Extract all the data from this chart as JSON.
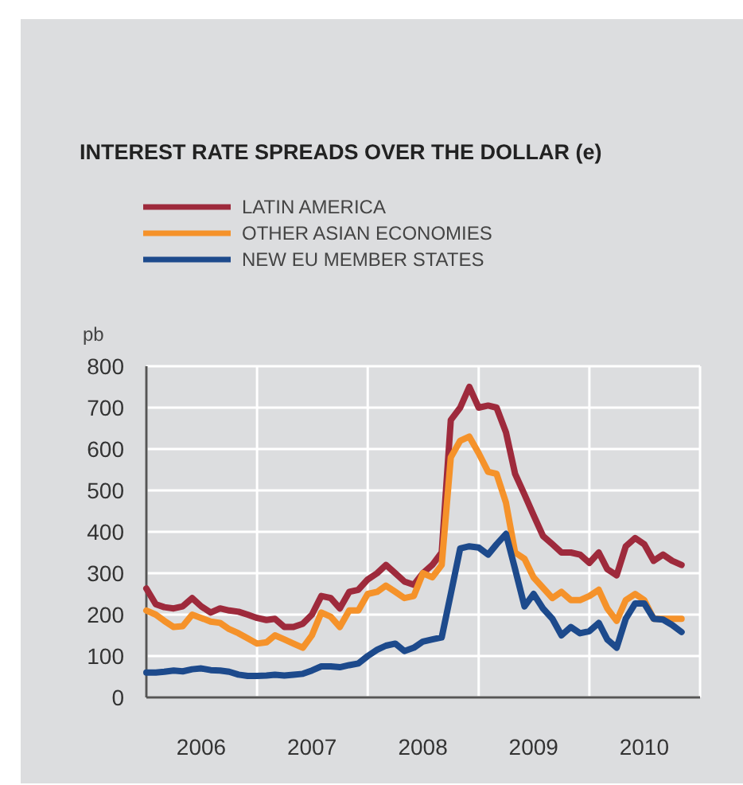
{
  "chart_data": {
    "type": "line",
    "title": "INTEREST RATE SPREADS OVER THE DOLLAR (e)",
    "ylabel": "pb",
    "x": [
      "2006-01",
      "2006-02",
      "2006-03",
      "2006-04",
      "2006-05",
      "2006-06",
      "2006-07",
      "2006-08",
      "2006-09",
      "2006-10",
      "2006-11",
      "2006-12",
      "2007-01",
      "2007-02",
      "2007-03",
      "2007-04",
      "2007-05",
      "2007-06",
      "2007-07",
      "2007-08",
      "2007-09",
      "2007-10",
      "2007-11",
      "2007-12",
      "2008-01",
      "2008-02",
      "2008-03",
      "2008-04",
      "2008-05",
      "2008-06",
      "2008-07",
      "2008-08",
      "2008-09",
      "2008-10",
      "2008-11",
      "2008-12",
      "2009-01",
      "2009-02",
      "2009-03",
      "2009-04",
      "2009-05",
      "2009-06",
      "2009-07",
      "2009-08",
      "2009-09",
      "2009-10",
      "2009-11",
      "2009-12",
      "2010-01",
      "2010-02",
      "2010-03",
      "2010-04",
      "2010-05",
      "2010-06",
      "2010-07",
      "2010-08",
      "2010-09",
      "2010-10",
      "2010-11"
    ],
    "series": [
      {
        "name": "LATIN AMERICA",
        "color": "#9e2a3c",
        "values": [
          263,
          225,
          218,
          215,
          220,
          240,
          220,
          205,
          215,
          210,
          207,
          200,
          192,
          187,
          190,
          170,
          170,
          178,
          200,
          245,
          240,
          215,
          255,
          260,
          285,
          300,
          320,
          300,
          280,
          272,
          300,
          320,
          350,
          670,
          700,
          750,
          700,
          705,
          700,
          640,
          540,
          490,
          440,
          390,
          370,
          350,
          350,
          345,
          325,
          350,
          310,
          295,
          365,
          385,
          370,
          330,
          345,
          330,
          320
        ]
      },
      {
        "name": "OTHER ASIAN ECONOMIES",
        "color": "#f5922a",
        "values": [
          210,
          200,
          185,
          170,
          172,
          200,
          192,
          183,
          180,
          165,
          155,
          143,
          130,
          133,
          150,
          140,
          130,
          120,
          150,
          205,
          195,
          170,
          210,
          210,
          250,
          255,
          270,
          255,
          240,
          245,
          300,
          290,
          320,
          580,
          620,
          630,
          590,
          545,
          540,
          470,
          350,
          335,
          290,
          265,
          240,
          255,
          235,
          235,
          245,
          260,
          215,
          185,
          235,
          250,
          235,
          190,
          190,
          190,
          190
        ]
      },
      {
        "name": "NEW EU MEMBER STATES",
        "color": "#1d4a8c",
        "values": [
          60,
          60,
          62,
          65,
          63,
          68,
          70,
          66,
          65,
          62,
          55,
          52,
          52,
          53,
          55,
          53,
          55,
          57,
          65,
          75,
          75,
          73,
          78,
          82,
          100,
          115,
          125,
          130,
          112,
          120,
          135,
          140,
          145,
          250,
          360,
          365,
          362,
          345,
          370,
          395,
          310,
          220,
          250,
          215,
          190,
          150,
          170,
          155,
          160,
          180,
          140,
          120,
          190,
          227,
          227,
          190,
          188,
          175,
          158
        ]
      }
    ],
    "xlim": [
      "2006-01-01",
      "2011-01-01"
    ],
    "xticks": [
      {
        "value": "2006-01-01",
        "label": null
      },
      {
        "value": "2006-07-01",
        "label": "2006"
      },
      {
        "value": "2007-01-01",
        "label": null
      },
      {
        "value": "2007-07-01",
        "label": "2007"
      },
      {
        "value": "2008-01-01",
        "label": null
      },
      {
        "value": "2008-07-01",
        "label": "2008"
      },
      {
        "value": "2009-01-01",
        "label": null
      },
      {
        "value": "2009-07-01",
        "label": "2009"
      },
      {
        "value": "2010-01-01",
        "label": null
      },
      {
        "value": "2010-07-01",
        "label": "2010"
      },
      {
        "value": "2011-01-01",
        "label": null
      }
    ],
    "ylim": [
      0,
      800
    ],
    "yticks": [
      0,
      100,
      200,
      300,
      400,
      500,
      600,
      700,
      800
    ],
    "grid": true,
    "legend": "top left",
    "marker": "none",
    "line_style": "solid"
  }
}
